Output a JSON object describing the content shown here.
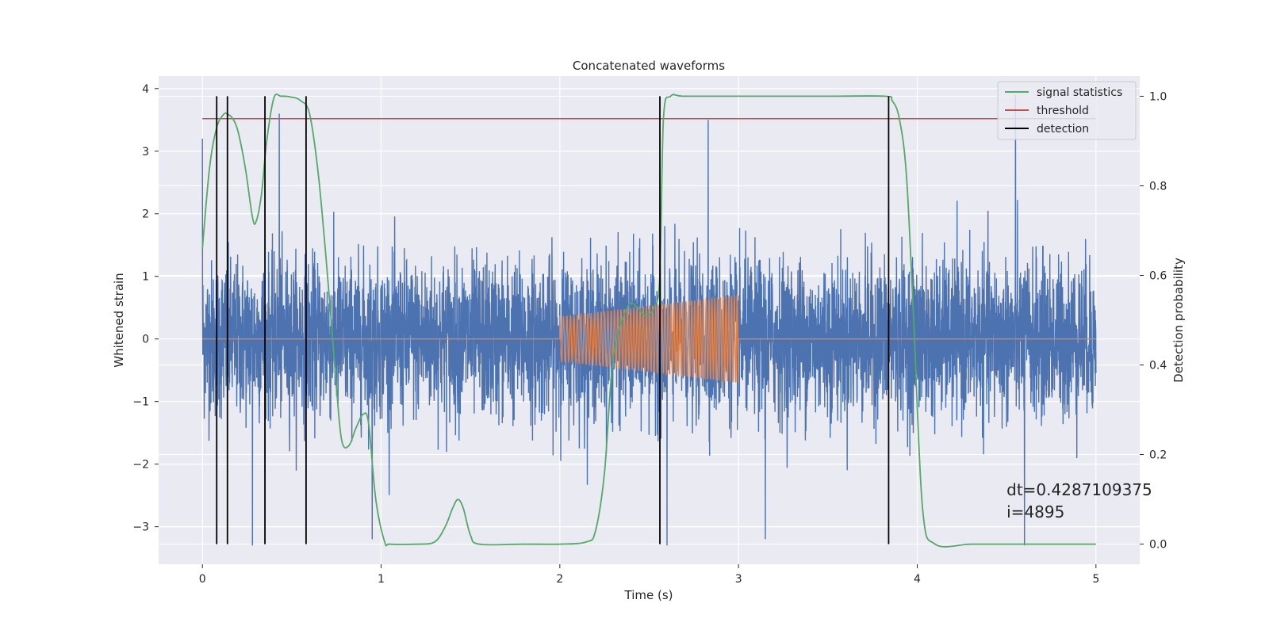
{
  "chart_data": {
    "type": "line",
    "title": "Concatenated waveforms",
    "xlabel": "Time (s)",
    "ylabel": "Whitened strain",
    "ylabel_right": "Detection probability",
    "xlim": [
      -0.245,
      5.245
    ],
    "ylim": [
      -3.6,
      4.2
    ],
    "ylim_right": [
      -0.045,
      1.045
    ],
    "xticks": [
      0,
      1,
      2,
      3,
      4,
      5
    ],
    "yticks": [
      -3,
      -2,
      -1,
      0,
      1,
      2,
      3,
      4
    ],
    "yticks_right": [
      0.0,
      0.2,
      0.4,
      0.6,
      0.8,
      1.0
    ],
    "grid": true,
    "legend_position": "top-right",
    "series": [
      {
        "name": "",
        "axis": "left",
        "color": "#4c72b0",
        "kind": "noise",
        "x_range": [
          0,
          5
        ],
        "approx_amplitude": 1.3,
        "peak_points": [
          [
            0.0,
            3.2
          ],
          [
            0.43,
            3.6
          ],
          [
            2.83,
            3.5
          ],
          [
            4.55,
            3.9
          ],
          [
            0.28,
            -3.3
          ],
          [
            0.95,
            -3.2
          ],
          [
            2.6,
            -3.3
          ],
          [
            3.15,
            -3.2
          ],
          [
            4.6,
            -3.3
          ]
        ]
      },
      {
        "name": "",
        "axis": "left",
        "color": "#dd8452",
        "kind": "chirp",
        "baseline": 0,
        "chirp_start": 2.0,
        "chirp_end": 3.0,
        "amplitude_start": 0.35,
        "amplitude_end": 0.7,
        "cycles": 50
      },
      {
        "name": "signal statistics",
        "axis": "right",
        "color": "#55a868",
        "x": [
          0.0,
          0.04,
          0.08,
          0.12,
          0.14,
          0.17,
          0.2,
          0.24,
          0.28,
          0.3,
          0.33,
          0.36,
          0.4,
          0.44,
          0.5,
          0.55,
          0.6,
          0.65,
          0.7,
          0.75,
          0.78,
          0.82,
          0.86,
          0.9,
          0.93,
          0.97,
          1.02,
          1.05,
          1.2,
          1.3,
          1.36,
          1.4,
          1.43,
          1.46,
          1.5,
          1.55,
          1.8,
          2.0,
          2.15,
          2.2,
          2.25,
          2.3,
          2.38,
          2.43,
          2.48,
          2.53,
          2.56,
          2.58,
          2.62,
          2.7,
          3.0,
          3.5,
          3.82,
          3.86,
          3.9,
          3.94,
          3.98,
          4.03,
          4.1,
          4.3,
          4.5,
          5.0
        ],
        "values": [
          0.66,
          0.84,
          0.93,
          0.96,
          0.96,
          0.95,
          0.92,
          0.84,
          0.73,
          0.72,
          0.78,
          0.9,
          0.996,
          1.0,
          0.998,
          0.99,
          0.96,
          0.82,
          0.6,
          0.35,
          0.23,
          0.22,
          0.26,
          0.29,
          0.27,
          0.1,
          0.005,
          0.0,
          0.0,
          0.005,
          0.04,
          0.08,
          0.1,
          0.08,
          0.02,
          0.0,
          0.0,
          0.0,
          0.005,
          0.03,
          0.16,
          0.42,
          0.53,
          0.53,
          0.51,
          0.53,
          0.6,
          0.95,
          1.0,
          1.0,
          1.0,
          1.0,
          1.0,
          0.99,
          0.95,
          0.82,
          0.5,
          0.08,
          0.0,
          0.0,
          0.0,
          0.0
        ]
      },
      {
        "name": "threshold",
        "axis": "right",
        "color": "#c44e52",
        "x": [
          0,
          5
        ],
        "values": [
          0.95,
          0.95
        ]
      }
    ],
    "detections": {
      "name": "detection",
      "color": "#000000",
      "x": [
        0.08,
        0.14,
        0.35,
        0.58,
        2.56,
        3.84
      ],
      "y_range_right": [
        0.0,
        1.0
      ]
    },
    "annotations": [
      {
        "text": "dt=0.4287109375",
        "x": 4.5,
        "y": -2.5
      },
      {
        "text": " i=4895",
        "x": 4.5,
        "y": -2.85
      }
    ]
  }
}
